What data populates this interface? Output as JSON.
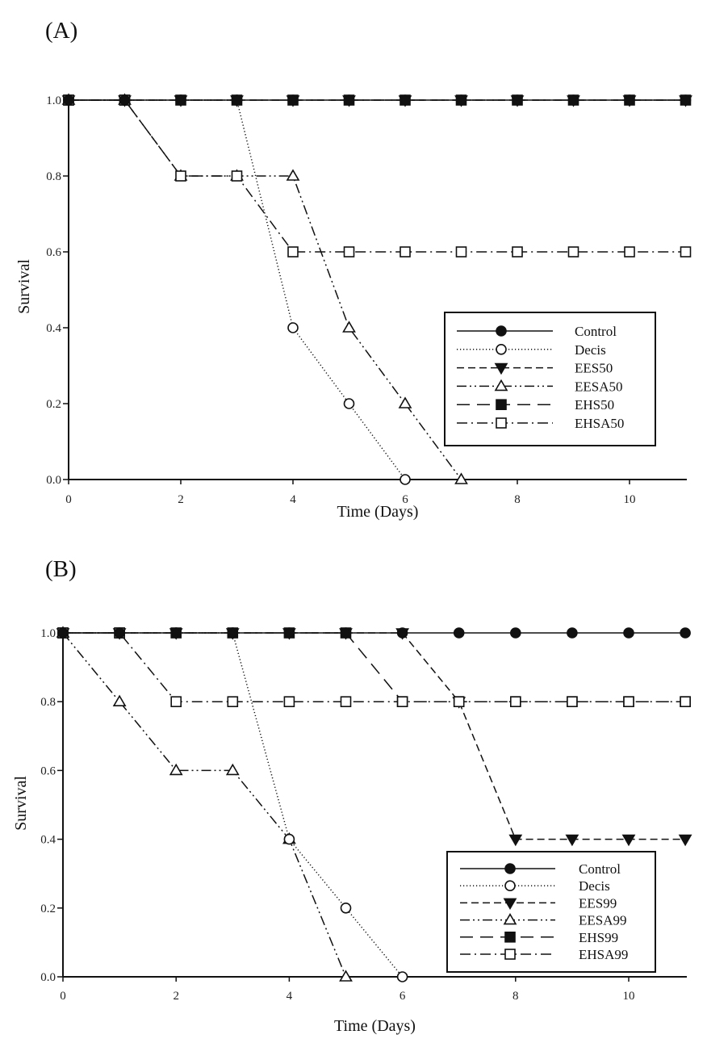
{
  "figure": {
    "panels": [
      {
        "id": "A",
        "label": "(A)"
      },
      {
        "id": "B",
        "label": "(B)"
      }
    ]
  },
  "chart_data": [
    {
      "panel": "(A)",
      "type": "line",
      "title": "",
      "xlabel": "Time (Days)",
      "ylabel": "Survival",
      "xlim": [
        0,
        11
      ],
      "ylim": [
        0,
        1
      ],
      "xticks": [
        0,
        2,
        4,
        6,
        8,
        10
      ],
      "yticks": [
        "0.0",
        "0.2",
        "0.4",
        "0.6",
        "0.8",
        "1.0"
      ],
      "grid": false,
      "legend_position": "lower right (inside)",
      "series": [
        {
          "name": "Control",
          "marker": "filled-circle",
          "line": "solid",
          "x": [
            0,
            1,
            2,
            3,
            4,
            5,
            6,
            7,
            8,
            9,
            10,
            11
          ],
          "values": [
            1,
            1,
            1,
            1,
            1,
            1,
            1,
            1,
            1,
            1,
            1,
            1
          ]
        },
        {
          "name": "Decis",
          "marker": "open-circle",
          "line": "dotted",
          "x": [
            0,
            1,
            2,
            3,
            4,
            5,
            6
          ],
          "values": [
            1,
            1,
            1,
            1,
            0.4,
            0.2,
            0.0
          ]
        },
        {
          "name": "EES50",
          "marker": "filled-triangle-down",
          "line": "dashed",
          "x": [
            0,
            1,
            2,
            3,
            4,
            5,
            6,
            7,
            8,
            9,
            10,
            11
          ],
          "values": [
            1,
            1,
            1,
            1,
            1,
            1,
            1,
            1,
            1,
            1,
            1,
            1
          ]
        },
        {
          "name": "EESA50",
          "marker": "open-triangle-up",
          "line": "dash-dot-dot",
          "x": [
            0,
            1,
            2,
            3,
            4,
            5,
            6,
            7
          ],
          "values": [
            1,
            1,
            0.8,
            0.8,
            0.8,
            0.4,
            0.2,
            0.0
          ]
        },
        {
          "name": "EHS50",
          "marker": "filled-square",
          "line": "long-dash",
          "x": [
            0,
            1,
            2,
            3,
            4,
            5,
            6,
            7,
            8,
            9,
            10,
            11
          ],
          "values": [
            1,
            1,
            1,
            1,
            1,
            1,
            1,
            1,
            1,
            1,
            1,
            1
          ]
        },
        {
          "name": "EHSA50",
          "marker": "open-square",
          "line": "dash-dot",
          "x": [
            0,
            1,
            2,
            3,
            4,
            5,
            6,
            7,
            8,
            9,
            10,
            11
          ],
          "values": [
            1,
            1,
            0.8,
            0.8,
            0.6,
            0.6,
            0.6,
            0.6,
            0.6,
            0.6,
            0.6,
            0.6
          ]
        }
      ]
    },
    {
      "panel": "(B)",
      "type": "line",
      "title": "",
      "xlabel": "Time (Days)",
      "ylabel": "Survival",
      "xlim": [
        0,
        11
      ],
      "ylim": [
        0,
        1
      ],
      "xticks": [
        0,
        2,
        4,
        6,
        8,
        10
      ],
      "yticks": [
        "0.0",
        "0.2",
        "0.4",
        "0.6",
        "0.8",
        "1.0"
      ],
      "grid": false,
      "legend_position": "lower right (inside)",
      "series": [
        {
          "name": "Control",
          "marker": "filled-circle",
          "line": "solid",
          "x": [
            0,
            1,
            2,
            3,
            4,
            5,
            6,
            7,
            8,
            9,
            10,
            11
          ],
          "values": [
            1,
            1,
            1,
            1,
            1,
            1,
            1,
            1,
            1,
            1,
            1,
            1
          ]
        },
        {
          "name": "Decis",
          "marker": "open-circle",
          "line": "dotted",
          "x": [
            0,
            1,
            2,
            3,
            4,
            5,
            6
          ],
          "values": [
            1,
            1,
            1,
            1,
            0.4,
            0.2,
            0.0
          ]
        },
        {
          "name": "EES99",
          "marker": "filled-triangle-down",
          "line": "dashed",
          "x": [
            0,
            1,
            2,
            3,
            4,
            5,
            6,
            7,
            8,
            9,
            10,
            11
          ],
          "values": [
            1,
            1,
            1,
            1,
            1,
            1,
            1,
            0.8,
            0.4,
            0.4,
            0.4,
            0.4
          ]
        },
        {
          "name": "EESA99",
          "marker": "open-triangle-up",
          "line": "dash-dot-dot",
          "x": [
            0,
            1,
            2,
            3,
            4,
            5
          ],
          "values": [
            1,
            0.8,
            0.6,
            0.6,
            0.4,
            0.0
          ]
        },
        {
          "name": "EHS99",
          "marker": "filled-square",
          "line": "long-dash",
          "x": [
            0,
            1,
            2,
            3,
            4,
            5,
            6,
            7,
            8,
            9,
            10,
            11
          ],
          "values": [
            1,
            1,
            1,
            1,
            1,
            1,
            0.8,
            0.8,
            0.8,
            0.8,
            0.8,
            0.8
          ]
        },
        {
          "name": "EHSA99",
          "marker": "open-square",
          "line": "dash-dot",
          "x": [
            0,
            1,
            2,
            3,
            4,
            5,
            6,
            7,
            8,
            9,
            10,
            11
          ],
          "values": [
            1,
            1,
            0.8,
            0.8,
            0.8,
            0.8,
            0.8,
            0.8,
            0.8,
            0.8,
            0.8,
            0.8
          ]
        }
      ]
    }
  ],
  "style": {
    "ink": "#111111",
    "background": "#ffffff"
  }
}
